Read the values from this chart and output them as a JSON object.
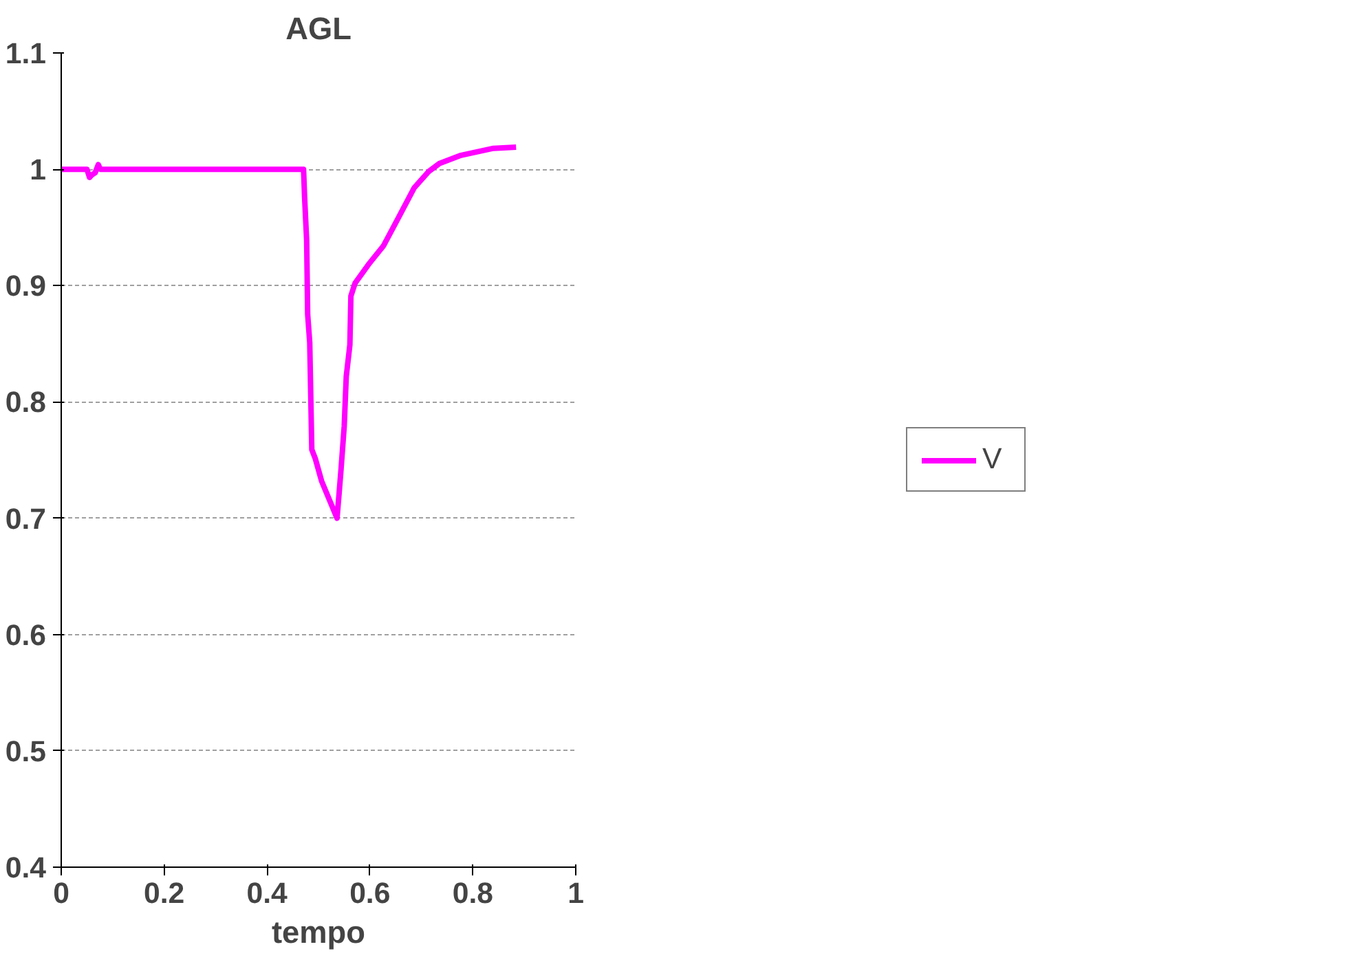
{
  "chart_data": {
    "type": "line",
    "title": "AGL",
    "xlabel": "tempo",
    "xlim": [
      0,
      1
    ],
    "xticks": [
      0,
      0.2,
      0.4,
      0.6,
      0.8,
      1
    ],
    "ylim": [
      0.4,
      1.1
    ],
    "yticks": [
      0.4,
      0.5,
      0.6,
      0.7,
      0.8,
      0.9,
      1,
      1.1
    ],
    "grid": "y",
    "legend": "right",
    "marker": "none",
    "line_style": "solid",
    "series": [
      {
        "name": "V",
        "color": "#ff00ff",
        "x": [
          0,
          0.05,
          0.055,
          0.059,
          0.066,
          0.072,
          0.076,
          0.1,
          0.3,
          0.471,
          0.473,
          0.477,
          0.479,
          0.483,
          0.487,
          0.494,
          0.506,
          0.521,
          0.536,
          0.54,
          0.544,
          0.55,
          0.554,
          0.561,
          0.563,
          0.571,
          0.597,
          0.626,
          0.655,
          0.686,
          0.714,
          0.735,
          0.777,
          0.84,
          0.884
        ],
        "values": [
          1,
          1,
          0.993,
          0.995,
          0.997,
          1.004,
          1,
          1,
          1,
          1,
          0.976,
          0.939,
          0.875,
          0.851,
          0.759,
          0.751,
          0.732,
          0.716,
          0.7,
          0.721,
          0.743,
          0.779,
          0.822,
          0.849,
          0.891,
          0.902,
          0.918,
          0.934,
          0.958,
          0.984,
          0.998,
          1.005,
          1.012,
          1.018,
          1.019
        ]
      }
    ]
  }
}
